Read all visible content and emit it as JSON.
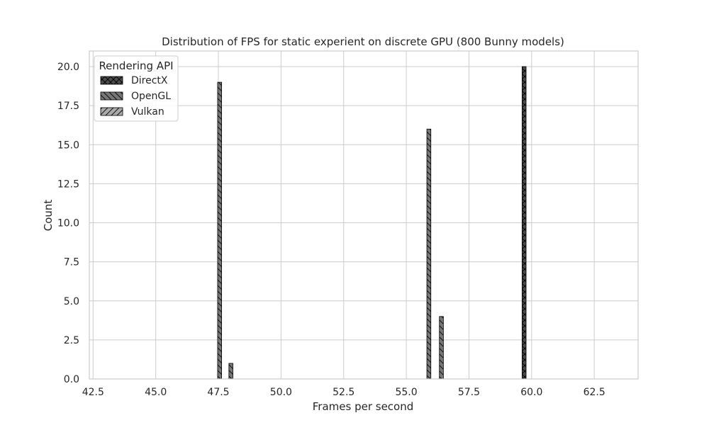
{
  "chart_data": {
    "type": "bar",
    "title": "Distribution of FPS for static experient on discrete GPU (800 Bunny models)",
    "xlabel": "Frames per second",
    "ylabel": "Count",
    "xlim": [
      42.35,
      64.25
    ],
    "ylim": [
      0,
      21
    ],
    "xticks": [
      42.5,
      45.0,
      47.5,
      50.0,
      52.5,
      55.0,
      57.5,
      60.0,
      62.5
    ],
    "xtick_labels": [
      "42.5",
      "45.0",
      "47.5",
      "50.0",
      "52.5",
      "55.0",
      "57.5",
      "60.0",
      "62.5"
    ],
    "yticks": [
      0,
      2.5,
      5,
      7.5,
      10,
      12.5,
      15,
      17.5,
      20
    ],
    "ytick_labels": [
      "0.0",
      "2.5",
      "5.0",
      "7.5",
      "10.0",
      "12.5",
      "15.0",
      "17.5",
      "20.0"
    ],
    "grid": true,
    "legend": {
      "title": "Rendering API",
      "placement": "top-left"
    },
    "bin_width": 0.16,
    "series": [
      {
        "name": "DirectX",
        "color": "#4a4a4a",
        "hatch": "x",
        "bars": [
          {
            "x": 59.7,
            "count": 20
          }
        ]
      },
      {
        "name": "OpenGL",
        "color": "#777777",
        "hatch": "\\",
        "bars": [
          {
            "x": 47.55,
            "count": 19
          },
          {
            "x": 48.0,
            "count": 1
          },
          {
            "x": 55.9,
            "count": 16
          },
          {
            "x": 56.4,
            "count": 4
          }
        ]
      },
      {
        "name": "Vulkan",
        "color": "#aaaaaa",
        "hatch": "/",
        "bars": []
      }
    ]
  }
}
